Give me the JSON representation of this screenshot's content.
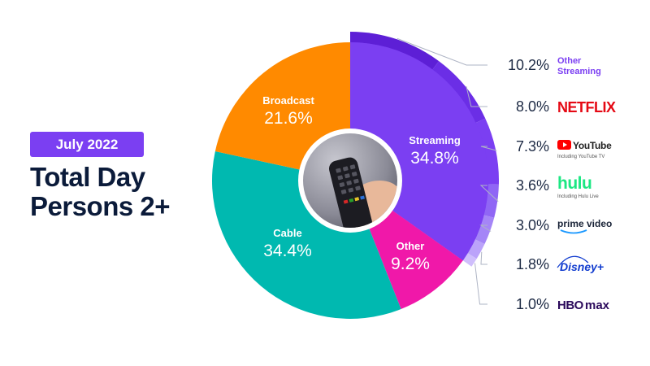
{
  "badge": {
    "period": "July 2022"
  },
  "title": {
    "line1": "Total Day",
    "line2": "Persons 2+"
  },
  "colors": {
    "streaming": "#7b3ff2",
    "broadcast": "#ff8a00",
    "cable": "#00b9b0",
    "other": "#f018a9",
    "streaming_services": "#b59cf8",
    "dark_text": "#0b1b3a",
    "netflix": "#e50914",
    "youtube": "#ff0000",
    "hulu": "#1ce783",
    "prime": "#1a98ff",
    "disney": "#113ccf",
    "hbomax": "#2b0a5b"
  },
  "chart_data": {
    "type": "pie",
    "subtype": "donut",
    "title": "Total Day Persons 2+",
    "period": "July 2022",
    "slices": [
      {
        "name": "Streaming",
        "value": 34.8,
        "display": "34.8%",
        "color": "#7b3ff2"
      },
      {
        "name": "Other",
        "value": 9.2,
        "display": "9.2%",
        "color": "#f018a9"
      },
      {
        "name": "Cable",
        "value": 34.4,
        "display": "34.4%",
        "color": "#00b9b0"
      },
      {
        "name": "Broadcast",
        "value": 21.6,
        "display": "21.6%",
        "color": "#ff8a00"
      }
    ],
    "streaming_breakdown": [
      {
        "name": "Other Streaming",
        "brand_lines": [
          "Other",
          "Streaming"
        ],
        "value": 10.2,
        "display": "10.2%",
        "icon": "text-label"
      },
      {
        "name": "Netflix",
        "brand": "NETFLIX",
        "value": 8.0,
        "display": "8.0%",
        "icon": "netflix-logo"
      },
      {
        "name": "YouTube",
        "brand": "YouTube",
        "sub": "Including YouTube TV",
        "value": 7.3,
        "display": "7.3%",
        "icon": "youtube-logo"
      },
      {
        "name": "Hulu",
        "brand": "hulu",
        "sub": "Including Hulu Live",
        "value": 3.6,
        "display": "3.6%",
        "icon": "hulu-logo"
      },
      {
        "name": "Prime Video",
        "brand": "prime video",
        "value": 3.0,
        "display": "3.0%",
        "icon": "prime-video-logo"
      },
      {
        "name": "Disney+",
        "brand": "Disney+",
        "value": 1.8,
        "display": "1.8%",
        "icon": "disney-plus-logo"
      },
      {
        "name": "HBO Max",
        "brand": "HBO",
        "brand2": "max",
        "value": 1.0,
        "display": "1.0%",
        "icon": "hbo-max-logo"
      }
    ],
    "center_image": "tv-remote-photo"
  }
}
